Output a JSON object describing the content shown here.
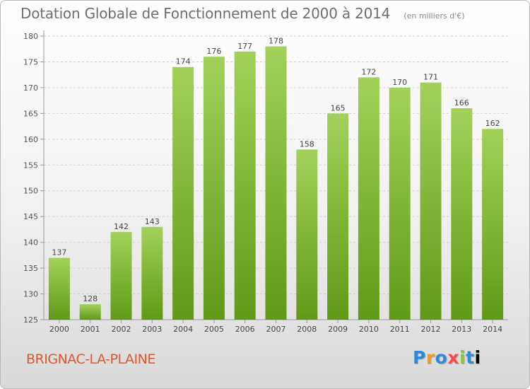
{
  "header": {
    "title": "Dotation Globale de Fonctionnement de 2000 à 2014",
    "subtitle": "(en milliers d'€)"
  },
  "footer": {
    "commune": "BRIGNAC-LA-PLAINE",
    "logo_letters": [
      "P",
      "r",
      "o",
      "x",
      "i",
      "t",
      "i"
    ]
  },
  "colors": {
    "bar_top": "#a3d15a",
    "bar_bottom": "#5f9a17",
    "commune": "#e0572a"
  },
  "chart_data": {
    "type": "bar",
    "title": "Dotation Globale de Fonctionnement de 2000 à 2014",
    "subtitle": "(en milliers d'€)",
    "categories": [
      "2000",
      "2001",
      "2002",
      "2003",
      "2004",
      "2005",
      "2006",
      "2007",
      "2008",
      "2009",
      "2010",
      "2011",
      "2012",
      "2013",
      "2014"
    ],
    "values": [
      137,
      128,
      142,
      143,
      174,
      176,
      177,
      178,
      158,
      165,
      172,
      170,
      171,
      166,
      162
    ],
    "ylim": [
      125,
      180
    ],
    "yticks": [
      125,
      130,
      135,
      140,
      145,
      150,
      155,
      160,
      165,
      170,
      175,
      180
    ],
    "grid": "horizontal dashed",
    "xlabel": "",
    "ylabel": ""
  }
}
